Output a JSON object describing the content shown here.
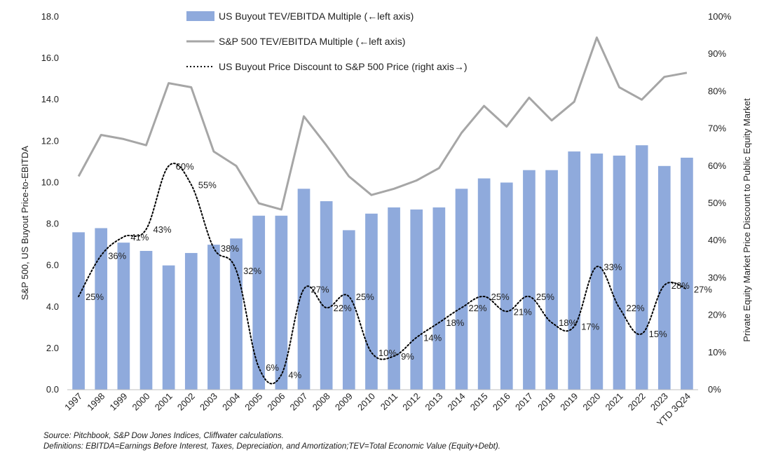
{
  "chart_data": {
    "type": "bar",
    "categories": [
      "1997",
      "1998",
      "1999",
      "2000",
      "2001",
      "2002",
      "2003",
      "2004",
      "2005",
      "2006",
      "2007",
      "2008",
      "2009",
      "2010",
      "2011",
      "2012",
      "2013",
      "2014",
      "2015",
      "2016",
      "2017",
      "2018",
      "2019",
      "2020",
      "2021",
      "2022",
      "2023",
      "YTD 3Q24"
    ],
    "series": [
      {
        "name": "US Buyout TEV/EBITDA Multiple (←left axis)",
        "type": "bar",
        "axis": "left",
        "color": "#8FAADC",
        "values": [
          7.6,
          7.8,
          7.1,
          6.7,
          6.0,
          6.6,
          7.0,
          7.3,
          8.4,
          8.4,
          9.7,
          9.1,
          7.7,
          8.5,
          8.8,
          8.7,
          8.8,
          9.7,
          10.2,
          10.0,
          10.6,
          10.6,
          11.5,
          11.4,
          11.3,
          11.8,
          10.8,
          11.2
        ]
      },
      {
        "name": "S&P 500 TEV/EBITDA Multiple (←left axis)",
        "type": "line",
        "axis": "left",
        "color": "#A6A6A6",
        "values": [
          10.3,
          12.3,
          12.1,
          11.8,
          14.8,
          14.6,
          11.5,
          10.8,
          9.0,
          8.7,
          13.2,
          11.8,
          10.3,
          9.4,
          9.7,
          10.1,
          10.7,
          12.4,
          13.7,
          12.7,
          14.1,
          13.0,
          13.9,
          17.0,
          14.6,
          14.0,
          15.1,
          15.3
        ]
      },
      {
        "name": "US Buyout Price Discount to S&P 500 Price (right axis→)",
        "type": "line",
        "style": "dotted",
        "axis": "right",
        "color": "#000000",
        "values": [
          25,
          36,
          41,
          43,
          60,
          55,
          38,
          32,
          6,
          4,
          27,
          22,
          25,
          10,
          9,
          14,
          18,
          22,
          25,
          21,
          25,
          18,
          17,
          33,
          22,
          15,
          28,
          27
        ],
        "labels": [
          "25%",
          "36%",
          "41%",
          "43%",
          "60%",
          "55%",
          "38%",
          "32%",
          "6%",
          "4%",
          "27%",
          "22%",
          "25%",
          "10%",
          "9%",
          "14%",
          "18%",
          "22%",
          "25%",
          "21%",
          "25%",
          "18%",
          "17%",
          "33%",
          "22%",
          "15%",
          "28%",
          "27%"
        ]
      }
    ],
    "left_axis": {
      "title": "S&P 500, US Buyout Price-to-EBITDA",
      "min": 0,
      "max": 18,
      "ticks": [
        "0.0",
        "2.0",
        "4.0",
        "6.0",
        "8.0",
        "10.0",
        "12.0",
        "14.0",
        "16.0",
        "18.0"
      ]
    },
    "right_axis": {
      "title": "Private Equity Market Price Discount to Public Equity Market",
      "min": 0,
      "max": 100,
      "ticks": [
        "0%",
        "10%",
        "20%",
        "30%",
        "40%",
        "50%",
        "60%",
        "70%",
        "80%",
        "90%",
        "100%"
      ]
    },
    "legend_position": "top-center",
    "grid": false
  },
  "footnotes": {
    "source": "Source: Pitchbook, S&P Dow Jones Indices, Cliffwater calculations.",
    "definitions": "Definitions: EBITDA=Earnings Before Interest, Taxes, Depreciation, and Amortization;TEV=Total Economic Value (Equity+Debt)."
  }
}
